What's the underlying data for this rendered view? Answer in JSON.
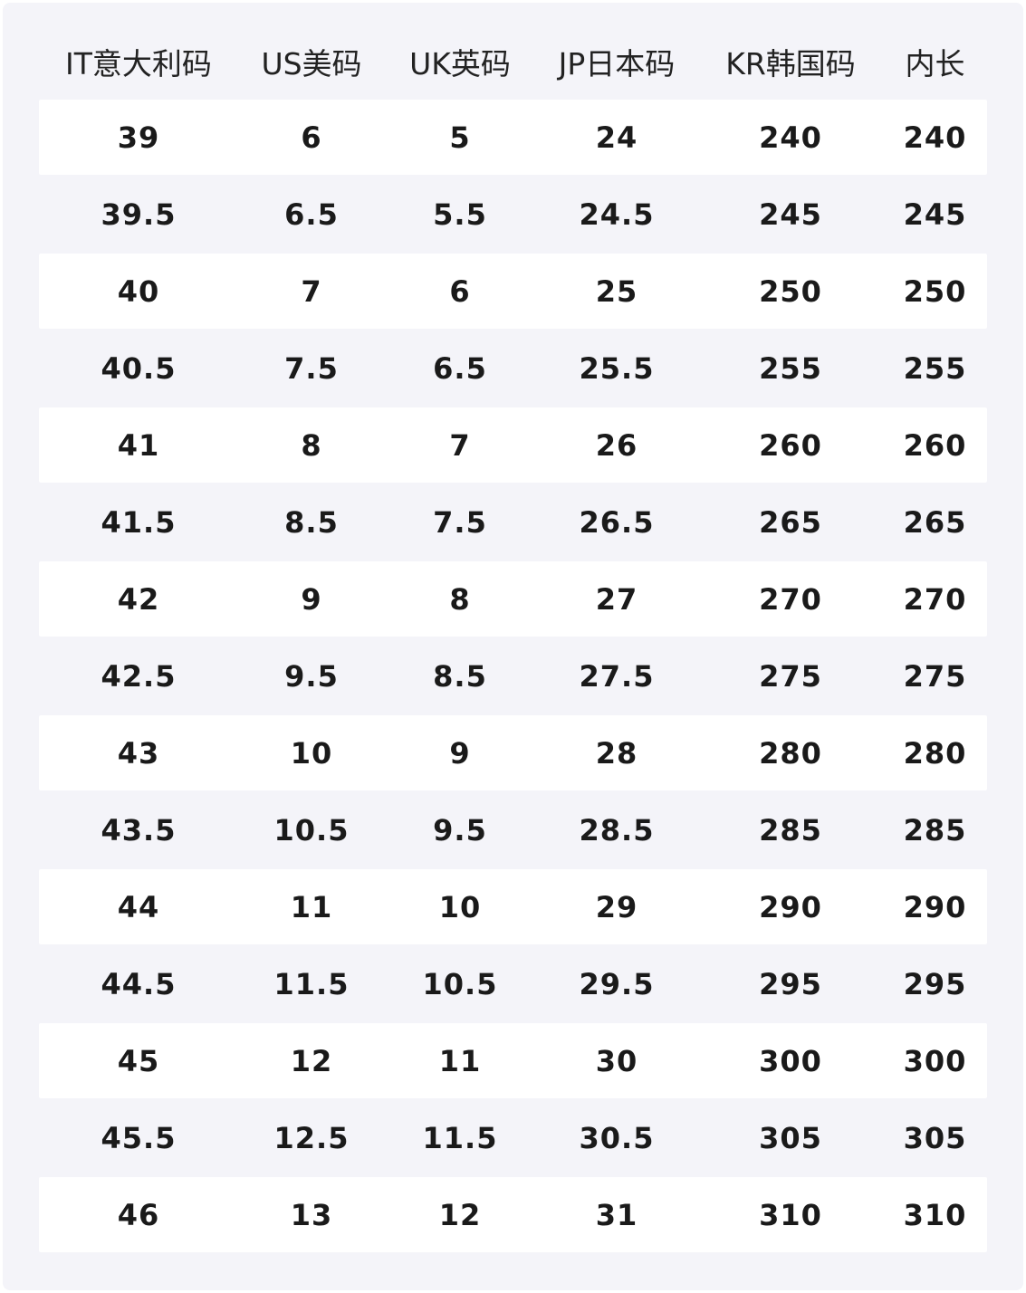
{
  "table": {
    "headers": [
      "IT意大利码",
      "US美码",
      "UK英码",
      "JP日本码",
      "KR韩国码",
      "内长"
    ],
    "rows": [
      [
        "39",
        "6",
        "5",
        "24",
        "240",
        "240"
      ],
      [
        "39.5",
        "6.5",
        "5.5",
        "24.5",
        "245",
        "245"
      ],
      [
        "40",
        "7",
        "6",
        "25",
        "250",
        "250"
      ],
      [
        "40.5",
        "7.5",
        "6.5",
        "25.5",
        "255",
        "255"
      ],
      [
        "41",
        "8",
        "7",
        "26",
        "260",
        "260"
      ],
      [
        "41.5",
        "8.5",
        "7.5",
        "26.5",
        "265",
        "265"
      ],
      [
        "42",
        "9",
        "8",
        "27",
        "270",
        "270"
      ],
      [
        "42.5",
        "9.5",
        "8.5",
        "27.5",
        "275",
        "275"
      ],
      [
        "43",
        "10",
        "9",
        "28",
        "280",
        "280"
      ],
      [
        "43.5",
        "10.5",
        "9.5",
        "28.5",
        "285",
        "285"
      ],
      [
        "44",
        "11",
        "10",
        "29",
        "290",
        "290"
      ],
      [
        "44.5",
        "11.5",
        "10.5",
        "29.5",
        "295",
        "295"
      ],
      [
        "45",
        "12",
        "11",
        "30",
        "300",
        "300"
      ],
      [
        "45.5",
        "12.5",
        "11.5",
        "30.5",
        "305",
        "305"
      ],
      [
        "46",
        "13",
        "12",
        "31",
        "310",
        "310"
      ]
    ]
  },
  "colors": {
    "background": "#f4f4f9",
    "row_alt": "#ffffff",
    "text": "#1a1a1a"
  }
}
